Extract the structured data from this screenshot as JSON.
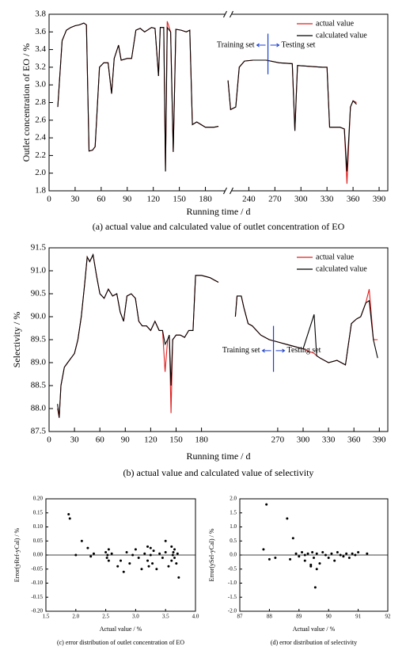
{
  "chart_data": [
    {
      "type": "line",
      "caption": "(a) actual value and calculated value of outlet concentration of EO",
      "xlabel": "Running time / d",
      "ylabel": "Outlet concentration of EO / %",
      "xlim": [
        0,
        400
      ],
      "x_break": [
        200,
        210
      ],
      "xticks": [
        0,
        30,
        60,
        90,
        120,
        150,
        180,
        240,
        270,
        300,
        330,
        360,
        390
      ],
      "ylim": [
        1.8,
        3.8
      ],
      "yticks": [
        1.8,
        {
          "value": 2,
          "label": "2.0"
        },
        2.2,
        2.4,
        2.6,
        2.8,
        {
          "value": 3,
          "label": "3.0"
        },
        3.2,
        3.4,
        3.6,
        3.8
      ],
      "legend": "upper right",
      "annotations": [
        "Training set",
        "Testing set"
      ],
      "split_x": 262,
      "x": [
        10,
        15,
        20,
        25,
        30,
        35,
        40,
        43,
        46,
        50,
        53,
        58,
        63,
        68,
        72,
        75,
        80,
        83,
        90,
        95,
        100,
        105,
        110,
        118,
        122,
        126,
        128,
        132,
        134,
        136,
        140,
        143,
        146,
        152,
        158,
        162,
        165,
        170,
        175,
        180,
        190,
        195,
        205,
        216,
        219,
        225,
        229,
        235,
        245,
        260,
        275,
        290,
        293,
        296,
        310,
        325,
        330,
        333,
        345,
        350,
        353,
        357,
        360,
        364
      ],
      "series": [
        {
          "name": "actual value",
          "color": "#e02020",
          "values": [
            2.75,
            3.5,
            3.62,
            3.65,
            3.67,
            3.68,
            3.7,
            3.68,
            2.25,
            2.26,
            2.3,
            3.2,
            3.25,
            3.25,
            2.9,
            3.3,
            3.45,
            3.28,
            3.3,
            3.3,
            3.62,
            3.64,
            3.6,
            3.65,
            3.64,
            3.1,
            3.65,
            3.65,
            2.02,
            3.72,
            3.6,
            2.24,
            3.63,
            3.62,
            3.6,
            3.62,
            2.55,
            2.58,
            2.55,
            2.52,
            2.52,
            2.53,
            null,
            3.05,
            2.72,
            2.75,
            3.2,
            3.27,
            3.28,
            3.28,
            3.25,
            3.24,
            2.48,
            3.22,
            3.21,
            3.2,
            3.2,
            2.52,
            2.52,
            2.5,
            1.88,
            2.75,
            2.82,
            2.8
          ]
        },
        {
          "name": "calculated value",
          "color": "#000000",
          "values": [
            2.75,
            3.5,
            3.62,
            3.65,
            3.67,
            3.68,
            3.7,
            3.68,
            2.25,
            2.26,
            2.3,
            3.2,
            3.25,
            3.25,
            2.9,
            3.3,
            3.45,
            3.28,
            3.3,
            3.3,
            3.62,
            3.64,
            3.6,
            3.65,
            3.64,
            3.1,
            3.65,
            3.65,
            2.02,
            3.65,
            3.6,
            2.24,
            3.63,
            3.62,
            3.6,
            3.62,
            2.55,
            2.58,
            2.55,
            2.52,
            2.52,
            2.53,
            null,
            3.05,
            2.72,
            2.75,
            3.2,
            3.27,
            3.28,
            3.28,
            3.25,
            3.24,
            2.48,
            3.22,
            3.21,
            3.2,
            3.2,
            2.52,
            2.52,
            2.5,
            2.02,
            2.75,
            2.82,
            2.78
          ]
        }
      ]
    },
    {
      "type": "line",
      "caption": "(b) actual value and calculated value of selectivity",
      "xlabel": "Running time / d",
      "ylabel": "Selectivity / %",
      "xlim": [
        0,
        400
      ],
      "xticks": [
        0,
        30,
        60,
        90,
        120,
        150,
        180,
        270,
        300,
        330,
        360,
        390
      ],
      "ylim": [
        87.5,
        91.5
      ],
      "yticks": [
        87.5,
        {
          "value": 88,
          "label": "88.0"
        },
        88.5,
        {
          "value": 89,
          "label": "89.0"
        },
        89.5,
        {
          "value": 90,
          "label": "90.0"
        },
        90.5,
        {
          "value": 91,
          "label": "91.0"
        },
        91.5
      ],
      "legend": "upper right",
      "annotations": [
        "Training set",
        "Testing set"
      ],
      "split_x": 265,
      "x": [
        10,
        12,
        14,
        18,
        22,
        26,
        30,
        34,
        38,
        42,
        45,
        48,
        52,
        56,
        60,
        65,
        70,
        75,
        80,
        84,
        88,
        92,
        97,
        102,
        106,
        110,
        115,
        120,
        125,
        130,
        134,
        137,
        140,
        142,
        144,
        146,
        150,
        155,
        160,
        165,
        170,
        173,
        180,
        190,
        195,
        200,
        210,
        220,
        222,
        227,
        230,
        235,
        240,
        250,
        260,
        270,
        280,
        290,
        300,
        313,
        316,
        320,
        330,
        340,
        350,
        357,
        363,
        368,
        374,
        378,
        383,
        388
      ],
      "series": [
        {
          "name": "actual value",
          "color": "#e02020",
          "values": [
            88.0,
            87.8,
            88.5,
            88.9,
            89.0,
            89.1,
            89.2,
            89.5,
            90.0,
            90.7,
            91.3,
            91.2,
            91.35,
            90.9,
            90.5,
            90.4,
            90.6,
            90.45,
            90.5,
            90.1,
            89.9,
            90.45,
            90.5,
            90.4,
            89.9,
            89.8,
            89.8,
            89.7,
            89.9,
            89.7,
            89.7,
            88.8,
            89.5,
            89.6,
            87.9,
            89.5,
            89.6,
            89.6,
            89.55,
            89.7,
            89.7,
            90.9,
            90.9,
            90.85,
            90.8,
            90.75,
            null,
            90.0,
            90.45,
            90.45,
            90.2,
            89.85,
            89.8,
            89.6,
            89.5,
            89.45,
            89.4,
            89.35,
            89.3,
            89.2,
            89.15,
            89.1,
            89.0,
            89.05,
            88.95,
            89.85,
            89.95,
            90.0,
            90.3,
            90.6,
            89.5,
            89.5
          ]
        },
        {
          "name": "calculated value",
          "color": "#000000",
          "values": [
            88.1,
            87.8,
            88.5,
            88.9,
            89.0,
            89.1,
            89.2,
            89.5,
            90.0,
            90.7,
            91.3,
            91.2,
            91.35,
            90.9,
            90.5,
            90.4,
            90.6,
            90.45,
            90.5,
            90.1,
            89.9,
            90.45,
            90.5,
            90.4,
            89.9,
            89.8,
            89.8,
            89.7,
            89.9,
            89.7,
            89.7,
            89.4,
            89.5,
            89.6,
            88.5,
            89.5,
            89.6,
            89.6,
            89.55,
            89.7,
            89.7,
            90.9,
            90.9,
            90.85,
            90.8,
            90.75,
            null,
            90.0,
            90.45,
            90.45,
            90.2,
            89.85,
            89.8,
            89.6,
            89.5,
            89.45,
            89.4,
            89.35,
            89.3,
            90.05,
            89.15,
            89.1,
            89.0,
            89.05,
            88.95,
            89.85,
            89.95,
            90.0,
            90.3,
            90.35,
            89.5,
            89.1
          ]
        }
      ]
    },
    {
      "type": "scatter",
      "caption": "(c) error distribution of outlet concentration of EO",
      "xlabel": "Actual value / %",
      "ylabel": "Error(yRef-yCal) / %",
      "zero_line": true,
      "color": "#000000",
      "xlim": [
        1.5,
        4
      ],
      "xticks": [
        1.5,
        {
          "value": 2,
          "label": "2.0"
        },
        2.5,
        {
          "value": 3,
          "label": "3.0"
        },
        3.5,
        {
          "value": 4,
          "label": "4.0"
        }
      ],
      "ylim": [
        -0.2,
        0.2
      ],
      "yticks": [
        {
          "value": -0.2,
          "label": "-0.20"
        },
        -0.15,
        {
          "value": -0.1,
          "label": "-0.10"
        },
        -0.05,
        {
          "value": 0,
          "label": "0.00"
        },
        0.05,
        {
          "value": 0.1,
          "label": "0.10"
        },
        0.15,
        {
          "value": 0.2,
          "label": "0.20"
        }
      ],
      "x": [
        1.88,
        1.9,
        2.0,
        2.1,
        2.2,
        2.25,
        2.5,
        2.52,
        2.53,
        2.55,
        2.55,
        2.6,
        2.7,
        2.75,
        2.8,
        2.85,
        2.9,
        2.95,
        3.0,
        3.05,
        3.1,
        3.15,
        3.2,
        3.2,
        3.22,
        3.25,
        3.25,
        3.28,
        3.3,
        3.35,
        3.4,
        3.45,
        3.5,
        3.55,
        3.6,
        3.6,
        3.62,
        3.63,
        3.65,
        3.65,
        3.68,
        3.7,
        3.72,
        2.3,
        3.5
      ],
      "values": [
        0.145,
        0.13,
        0.0,
        0.05,
        0.025,
        -0.005,
        0.01,
        -0.01,
        0.0,
        0.02,
        -0.02,
        0.005,
        -0.04,
        -0.02,
        -0.06,
        0.01,
        -0.03,
        0.0,
        0.02,
        -0.01,
        -0.05,
        0.005,
        0.03,
        -0.02,
        -0.04,
        0.025,
        0.0,
        -0.03,
        0.015,
        -0.05,
        0.005,
        -0.01,
        0.05,
        -0.04,
        0.03,
        -0.02,
        0.0,
        0.01,
        -0.01,
        0.02,
        -0.03,
        0.005,
        -0.08,
        0.005,
        0.01
      ]
    },
    {
      "type": "scatter",
      "caption": "(d) error distribution of selectivity",
      "xlabel": "Actual value / %",
      "ylabel": "Error(ySel-yCal) / %",
      "zero_line": true,
      "color": "#000000",
      "xlim": [
        87,
        92
      ],
      "xticks": [
        87,
        88,
        89,
        90,
        91,
        92
      ],
      "ylim": [
        -2,
        2
      ],
      "yticks": [
        {
          "value": -2,
          "label": "-2.0"
        },
        -1.5,
        {
          "value": -1,
          "label": "-1.0"
        },
        -0.5,
        {
          "value": 0,
          "label": "0.0"
        },
        0.5,
        {
          "value": 1,
          "label": "1.0"
        },
        1.5,
        {
          "value": 2,
          "label": "2.0"
        }
      ],
      "x": [
        87.8,
        87.9,
        88.0,
        88.6,
        88.7,
        88.8,
        88.9,
        89.0,
        89.1,
        89.2,
        89.3,
        89.4,
        89.45,
        89.5,
        89.55,
        89.6,
        89.7,
        89.8,
        89.9,
        90.0,
        90.1,
        90.2,
        90.3,
        90.4,
        90.5,
        90.6,
        90.7,
        90.8,
        90.9,
        91.0,
        91.3,
        89.6,
        88.2,
        89.2,
        89.4
      ],
      "values": [
        0.2,
        1.8,
        -0.15,
        1.3,
        -0.15,
        0.6,
        0.05,
        -0.05,
        0.1,
        -0.2,
        0.05,
        -0.4,
        0.1,
        -0.1,
        -1.15,
        0.05,
        -0.3,
        0.1,
        0.0,
        -0.1,
        0.05,
        -0.2,
        0.1,
        0.0,
        -0.05,
        0.05,
        -0.1,
        0.05,
        0.0,
        0.1,
        0.05,
        -0.5,
        -0.1,
        0.0,
        -0.35
      ]
    }
  ]
}
